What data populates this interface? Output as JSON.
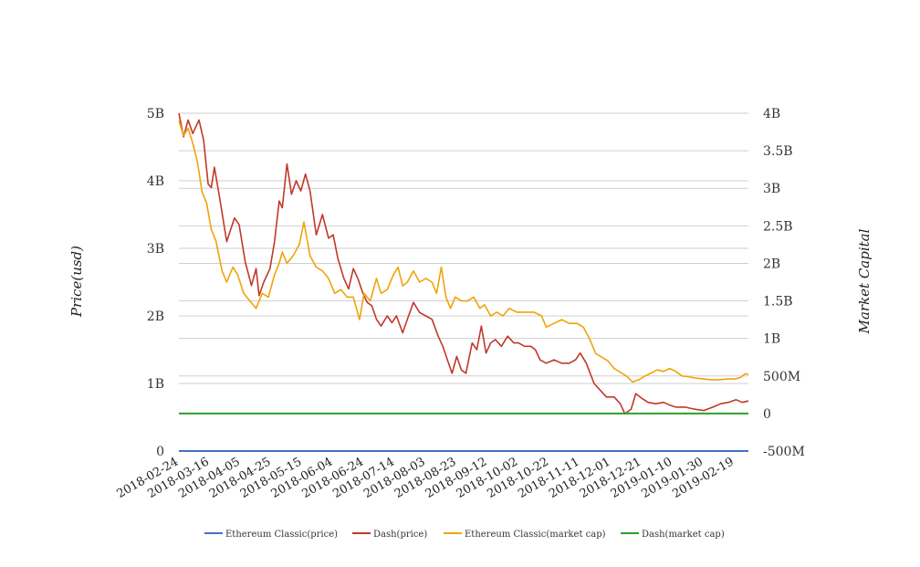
{
  "chart_data": {
    "type": "line",
    "title": "",
    "ylabel_left": "Price(usd)",
    "ylabel_right": "Market Capital",
    "ylim_left": [
      0,
      5000000000
    ],
    "ylim_right": [
      -500000000,
      4000000000
    ],
    "y_ticks_left": [
      "0",
      "1B",
      "2B",
      "3B",
      "4B",
      "5B"
    ],
    "y_ticks_right": [
      "-500M",
      "0",
      "500M",
      "1B",
      "1.5B",
      "2B",
      "2.5B",
      "3B",
      "3.5B",
      "4B"
    ],
    "x_range": [
      "2018-02-24",
      "2019-02-28"
    ],
    "x_ticks": [
      "2018-02-24",
      "2018-03-16",
      "2018-04-05",
      "2018-04-25",
      "2018-05-15",
      "2018-06-04",
      "2018-06-24",
      "2018-07-14",
      "2018-08-03",
      "2018-08-23",
      "2018-09-12",
      "2018-10-02",
      "2018-10-22",
      "2018-11-11",
      "2018-12-01",
      "2018-12-21",
      "2019-01-10",
      "2019-01-30",
      "2019-02-19"
    ],
    "grid": true,
    "legend_position": "bottom",
    "series": [
      {
        "name": "Ethereum Classic(price)",
        "axis": "left",
        "color": "#4472c4",
        "points": [
          [
            "2018-02-24",
            30
          ],
          [
            "2018-06-01",
            18
          ],
          [
            "2018-09-01",
            12
          ],
          [
            "2018-12-01",
            5
          ],
          [
            "2019-02-28",
            4
          ]
        ]
      },
      {
        "name": "Dash(price)",
        "axis": "left",
        "color": "#c0392b",
        "points": [
          [
            "2018-02-24",
            5000000000
          ],
          [
            "2018-02-27",
            4650000000
          ],
          [
            "2018-03-02",
            4900000000
          ],
          [
            "2018-03-05",
            4700000000
          ],
          [
            "2018-03-09",
            4900000000
          ],
          [
            "2018-03-12",
            4600000000
          ],
          [
            "2018-03-15",
            3950000000
          ],
          [
            "2018-03-17",
            3900000000
          ],
          [
            "2018-03-19",
            4200000000
          ],
          [
            "2018-03-22",
            3800000000
          ],
          [
            "2018-03-27",
            3100000000
          ],
          [
            "2018-04-01",
            3450000000
          ],
          [
            "2018-04-04",
            3350000000
          ],
          [
            "2018-04-08",
            2800000000
          ],
          [
            "2018-04-12",
            2450000000
          ],
          [
            "2018-04-15",
            2700000000
          ],
          [
            "2018-04-17",
            2300000000
          ],
          [
            "2018-04-20",
            2500000000
          ],
          [
            "2018-04-24",
            2700000000
          ],
          [
            "2018-04-27",
            3100000000
          ],
          [
            "2018-04-30",
            3700000000
          ],
          [
            "2018-05-02",
            3600000000
          ],
          [
            "2018-05-05",
            4250000000
          ],
          [
            "2018-05-08",
            3800000000
          ],
          [
            "2018-05-11",
            4000000000
          ],
          [
            "2018-05-14",
            3850000000
          ],
          [
            "2018-05-17",
            4100000000
          ],
          [
            "2018-05-20",
            3850000000
          ],
          [
            "2018-05-24",
            3200000000
          ],
          [
            "2018-05-28",
            3500000000
          ],
          [
            "2018-06-01",
            3150000000
          ],
          [
            "2018-06-04",
            3200000000
          ],
          [
            "2018-06-07",
            2850000000
          ],
          [
            "2018-06-11",
            2550000000
          ],
          [
            "2018-06-14",
            2400000000
          ],
          [
            "2018-06-17",
            2700000000
          ],
          [
            "2018-06-20",
            2550000000
          ],
          [
            "2018-06-23",
            2350000000
          ],
          [
            "2018-06-26",
            2200000000
          ],
          [
            "2018-06-29",
            2150000000
          ],
          [
            "2018-07-02",
            1950000000
          ],
          [
            "2018-07-05",
            1850000000
          ],
          [
            "2018-07-09",
            2000000000
          ],
          [
            "2018-07-12",
            1900000000
          ],
          [
            "2018-07-15",
            2000000000
          ],
          [
            "2018-07-19",
            1750000000
          ],
          [
            "2018-07-22",
            1950000000
          ],
          [
            "2018-07-26",
            2200000000
          ],
          [
            "2018-07-30",
            2050000000
          ],
          [
            "2018-08-03",
            2000000000
          ],
          [
            "2018-08-07",
            1950000000
          ],
          [
            "2018-08-11",
            1700000000
          ],
          [
            "2018-08-14",
            1550000000
          ],
          [
            "2018-08-17",
            1350000000
          ],
          [
            "2018-08-20",
            1150000000
          ],
          [
            "2018-08-23",
            1400000000
          ],
          [
            "2018-08-26",
            1200000000
          ],
          [
            "2018-08-29",
            1150000000
          ],
          [
            "2018-09-02",
            1600000000
          ],
          [
            "2018-09-05",
            1500000000
          ],
          [
            "2018-09-08",
            1850000000
          ],
          [
            "2018-09-11",
            1450000000
          ],
          [
            "2018-09-14",
            1600000000
          ],
          [
            "2018-09-17",
            1650000000
          ],
          [
            "2018-09-21",
            1550000000
          ],
          [
            "2018-09-25",
            1700000000
          ],
          [
            "2018-09-29",
            1600000000
          ],
          [
            "2018-10-02",
            1600000000
          ],
          [
            "2018-10-06",
            1550000000
          ],
          [
            "2018-10-10",
            1550000000
          ],
          [
            "2018-10-13",
            1500000000
          ],
          [
            "2018-10-16",
            1350000000
          ],
          [
            "2018-10-20",
            1300000000
          ],
          [
            "2018-10-25",
            1350000000
          ],
          [
            "2018-10-30",
            1300000000
          ],
          [
            "2018-11-04",
            1300000000
          ],
          [
            "2018-11-08",
            1350000000
          ],
          [
            "2018-11-11",
            1450000000
          ],
          [
            "2018-11-15",
            1300000000
          ],
          [
            "2018-11-20",
            1000000000
          ],
          [
            "2018-11-24",
            900000000
          ],
          [
            "2018-11-28",
            800000000
          ],
          [
            "2018-12-03",
            800000000
          ],
          [
            "2018-12-07",
            700000000
          ],
          [
            "2018-12-10",
            550000000
          ],
          [
            "2018-12-14",
            620000000
          ],
          [
            "2018-12-17",
            850000000
          ],
          [
            "2018-12-21",
            780000000
          ],
          [
            "2018-12-25",
            720000000
          ],
          [
            "2018-12-30",
            700000000
          ],
          [
            "2019-01-04",
            720000000
          ],
          [
            "2019-01-08",
            680000000
          ],
          [
            "2019-01-12",
            650000000
          ],
          [
            "2019-01-18",
            650000000
          ],
          [
            "2019-01-24",
            620000000
          ],
          [
            "2019-01-30",
            600000000
          ],
          [
            "2019-02-05",
            650000000
          ],
          [
            "2019-02-10",
            700000000
          ],
          [
            "2019-02-15",
            720000000
          ],
          [
            "2019-02-20",
            760000000
          ],
          [
            "2019-02-24",
            720000000
          ],
          [
            "2019-02-28",
            740000000
          ]
        ]
      },
      {
        "name": "Ethereum Classic(market cap)",
        "axis": "right",
        "color": "#f0a30a",
        "points": [
          [
            "2018-02-24",
            3900000000
          ],
          [
            "2018-02-27",
            3700000000
          ],
          [
            "2018-03-02",
            3800000000
          ],
          [
            "2018-03-05",
            3600000000
          ],
          [
            "2018-03-08",
            3350000000
          ],
          [
            "2018-03-11",
            2950000000
          ],
          [
            "2018-03-14",
            2800000000
          ],
          [
            "2018-03-17",
            2450000000
          ],
          [
            "2018-03-20",
            2300000000
          ],
          [
            "2018-03-24",
            1900000000
          ],
          [
            "2018-03-27",
            1750000000
          ],
          [
            "2018-03-31",
            1950000000
          ],
          [
            "2018-04-03",
            1850000000
          ],
          [
            "2018-04-07",
            1600000000
          ],
          [
            "2018-04-11",
            1500000000
          ],
          [
            "2018-04-15",
            1400000000
          ],
          [
            "2018-04-19",
            1600000000
          ],
          [
            "2018-04-23",
            1550000000
          ],
          [
            "2018-04-27",
            1850000000
          ],
          [
            "2018-04-30",
            2000000000
          ],
          [
            "2018-05-02",
            2150000000
          ],
          [
            "2018-05-05",
            2000000000
          ],
          [
            "2018-05-09",
            2100000000
          ],
          [
            "2018-05-13",
            2250000000
          ],
          [
            "2018-05-16",
            2550000000
          ],
          [
            "2018-05-20",
            2100000000
          ],
          [
            "2018-05-24",
            1950000000
          ],
          [
            "2018-05-28",
            1900000000
          ],
          [
            "2018-06-01",
            1800000000
          ],
          [
            "2018-06-05",
            1600000000
          ],
          [
            "2018-06-09",
            1650000000
          ],
          [
            "2018-06-13",
            1550000000
          ],
          [
            "2018-06-17",
            1550000000
          ],
          [
            "2018-06-21",
            1250000000
          ],
          [
            "2018-06-24",
            1600000000
          ],
          [
            "2018-06-28",
            1500000000
          ],
          [
            "2018-07-02",
            1800000000
          ],
          [
            "2018-07-05",
            1600000000
          ],
          [
            "2018-07-09",
            1650000000
          ],
          [
            "2018-07-13",
            1850000000
          ],
          [
            "2018-07-16",
            1950000000
          ],
          [
            "2018-07-19",
            1700000000
          ],
          [
            "2018-07-22",
            1750000000
          ],
          [
            "2018-07-26",
            1900000000
          ],
          [
            "2018-07-30",
            1750000000
          ],
          [
            "2018-08-03",
            1800000000
          ],
          [
            "2018-08-07",
            1750000000
          ],
          [
            "2018-08-10",
            1600000000
          ],
          [
            "2018-08-13",
            1950000000
          ],
          [
            "2018-08-16",
            1550000000
          ],
          [
            "2018-08-19",
            1400000000
          ],
          [
            "2018-08-22",
            1550000000
          ],
          [
            "2018-08-26",
            1500000000
          ],
          [
            "2018-08-30",
            1500000000
          ],
          [
            "2018-09-03",
            1550000000
          ],
          [
            "2018-09-07",
            1400000000
          ],
          [
            "2018-09-10",
            1450000000
          ],
          [
            "2018-09-14",
            1300000000
          ],
          [
            "2018-09-18",
            1350000000
          ],
          [
            "2018-09-22",
            1300000000
          ],
          [
            "2018-09-26",
            1400000000
          ],
          [
            "2018-10-01",
            1350000000
          ],
          [
            "2018-10-06",
            1350000000
          ],
          [
            "2018-10-12",
            1350000000
          ],
          [
            "2018-10-17",
            1300000000
          ],
          [
            "2018-10-20",
            1150000000
          ],
          [
            "2018-10-25",
            1200000000
          ],
          [
            "2018-10-30",
            1250000000
          ],
          [
            "2018-11-04",
            1200000000
          ],
          [
            "2018-11-09",
            1200000000
          ],
          [
            "2018-11-13",
            1150000000
          ],
          [
            "2018-11-17",
            1000000000
          ],
          [
            "2018-11-21",
            800000000
          ],
          [
            "2018-11-25",
            750000000
          ],
          [
            "2018-11-29",
            700000000
          ],
          [
            "2018-12-03",
            600000000
          ],
          [
            "2018-12-07",
            550000000
          ],
          [
            "2018-12-11",
            500000000
          ],
          [
            "2018-12-15",
            420000000
          ],
          [
            "2018-12-19",
            450000000
          ],
          [
            "2018-12-23",
            500000000
          ],
          [
            "2018-12-27",
            540000000
          ],
          [
            "2018-12-31",
            580000000
          ],
          [
            "2019-01-04",
            560000000
          ],
          [
            "2019-01-08",
            600000000
          ],
          [
            "2019-01-12",
            560000000
          ],
          [
            "2019-01-16",
            500000000
          ],
          [
            "2019-01-20",
            490000000
          ],
          [
            "2019-01-25",
            470000000
          ],
          [
            "2019-01-30",
            460000000
          ],
          [
            "2019-02-04",
            450000000
          ],
          [
            "2019-02-09",
            450000000
          ],
          [
            "2019-02-14",
            460000000
          ],
          [
            "2019-02-19",
            460000000
          ],
          [
            "2019-02-23",
            480000000
          ],
          [
            "2019-02-26",
            530000000
          ],
          [
            "2019-02-28",
            520000000
          ]
        ]
      },
      {
        "name": "Dash(market cap)",
        "axis": "right",
        "color": "#2ca02c",
        "points": [
          [
            "2018-02-24",
            0
          ],
          [
            "2019-02-28",
            0
          ]
        ]
      }
    ]
  }
}
